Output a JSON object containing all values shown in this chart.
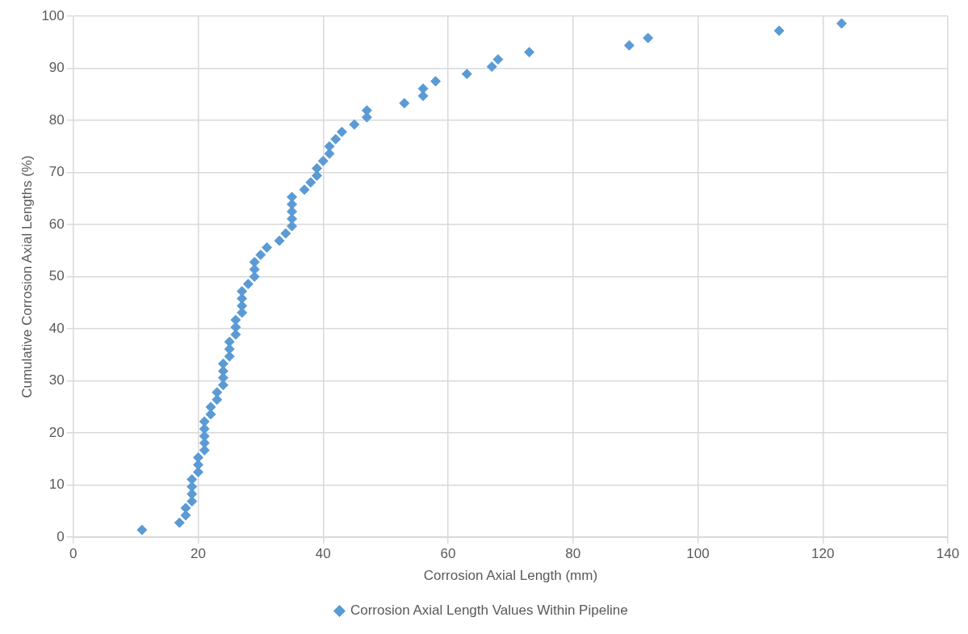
{
  "chart_data": {
    "type": "scatter",
    "xlabel": "Corrosion Axial Length (mm)",
    "ylabel": "Cumulative Corrosion Axial Lengths (%)",
    "xlim": [
      0,
      140
    ],
    "xticks": [
      0,
      20,
      40,
      60,
      80,
      100,
      120,
      140
    ],
    "ylim": [
      0,
      100
    ],
    "yticks": [
      0,
      10,
      20,
      30,
      40,
      50,
      60,
      70,
      80,
      90,
      100
    ],
    "grid": true,
    "legend": "bottom",
    "marker": "diamond",
    "series": [
      {
        "name": "Corrosion Axial Length Values Within Pipeline",
        "color": "#5b9bd5",
        "x": [
          11,
          17,
          18,
          18,
          19,
          19,
          19,
          19,
          20,
          20,
          20,
          21,
          21,
          21,
          21,
          21,
          22,
          22,
          23,
          23,
          24,
          24,
          24,
          24,
          25,
          25,
          25,
          26,
          26,
          26,
          27,
          27,
          27,
          27,
          28,
          29,
          29,
          29,
          30,
          31,
          33,
          34,
          35,
          35,
          35,
          35,
          35,
          37,
          38,
          39,
          39,
          40,
          41,
          41,
          42,
          43,
          45,
          47,
          47,
          53,
          56,
          56,
          58,
          63,
          67,
          68,
          73,
          89,
          92,
          113,
          123
        ],
        "values": [
          1.4,
          2.8,
          4.2,
          5.6,
          6.9,
          8.3,
          9.7,
          11.1,
          12.5,
          13.9,
          15.3,
          16.7,
          18.1,
          19.4,
          20.8,
          22.2,
          23.6,
          25.0,
          26.4,
          27.8,
          29.2,
          30.6,
          31.9,
          33.3,
          34.7,
          36.1,
          37.5,
          38.9,
          40.3,
          41.7,
          43.1,
          44.4,
          45.8,
          47.2,
          48.6,
          50.0,
          51.4,
          52.8,
          54.2,
          55.6,
          56.9,
          58.3,
          59.7,
          61.1,
          62.5,
          63.9,
          65.3,
          66.7,
          68.1,
          69.4,
          70.8,
          72.2,
          73.6,
          75.0,
          76.4,
          77.8,
          79.2,
          80.6,
          81.9,
          83.3,
          84.7,
          86.1,
          87.5,
          88.9,
          90.3,
          91.7,
          93.1,
          94.4,
          95.8,
          97.2,
          98.6
        ]
      }
    ]
  }
}
